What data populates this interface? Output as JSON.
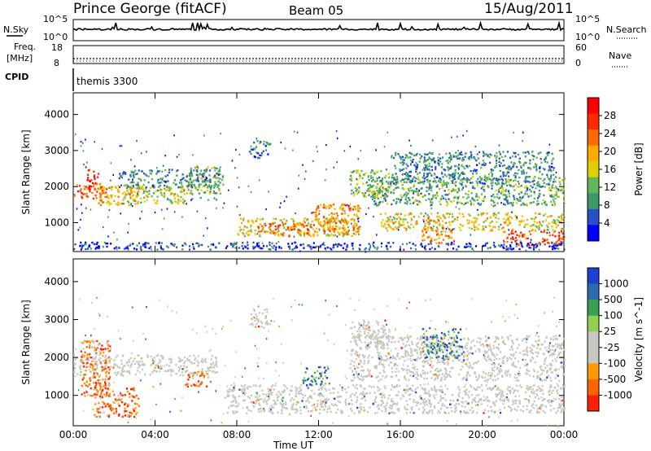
{
  "header": {
    "station": "Prince George (fitACF)",
    "beam": "Beam 05",
    "date": "15/Aug/2011"
  },
  "summary_panel": {
    "left_label_sky": "N.Sky",
    "left_tick_top": "10^5",
    "left_tick_bottom": "10^0",
    "right_label_search": "N.Search",
    "right_tick_top": "10^5",
    "right_tick_bottom": "10^0",
    "freq_label": "Freq.",
    "freq_unit": "[MHz]",
    "freq_tick_top": "18",
    "freq_tick_bottom": "8",
    "nave_label": "Nave",
    "nave_tick_top": "60",
    "nave_tick_bottom": "0",
    "cpid_label": "CPID",
    "cpid_value": "themis 3300"
  },
  "colors": {
    "power_scale": [
      "#0000ff",
      "#2a50c8",
      "#3c9a6a",
      "#5fb85a",
      "#e0d000",
      "#ffaa00",
      "#ff6a00",
      "#ff2a00",
      "#ff0000"
    ],
    "velocity_scale": [
      "#1f3fcf",
      "#2a6ab0",
      "#3aa050",
      "#8fd050",
      "#c8c8c0",
      "#c8c8c0",
      "#ff9a00",
      "#ff6400",
      "#ff2000"
    ],
    "ground_scatter": "#c8c8c0"
  },
  "chart_data": [
    {
      "type": "heatmap",
      "name": "power",
      "ylabel": "Slant Range [km]",
      "xlabel": "Time UT",
      "xlim_hours": [
        0,
        24
      ],
      "ylim_km": [
        200,
        4600
      ],
      "yticks": [
        "1000",
        "2000",
        "3000",
        "4000"
      ],
      "xticks": [
        "00:00",
        "04:00",
        "08:00",
        "12:00",
        "16:00",
        "20:00",
        "00:00"
      ],
      "colorbar_label": "Power [dB]",
      "colorbar_ticks": [
        "4",
        "8",
        "12",
        "16",
        "20",
        "24",
        "28"
      ],
      "colorbar_range": [
        0,
        30
      ],
      "regions": [
        {
          "t0": 0.0,
          "t1": 1.6,
          "r0": 1650,
          "r1": 2100,
          "level": 22
        },
        {
          "t0": 0.5,
          "t1": 1.2,
          "r0": 1950,
          "r1": 2500,
          "level": 26
        },
        {
          "t0": 1.2,
          "t1": 3.2,
          "r0": 1500,
          "r1": 2100,
          "level": 18
        },
        {
          "t0": 2.4,
          "t1": 5.6,
          "r0": 1550,
          "r1": 2050,
          "level": 14
        },
        {
          "t0": 5.6,
          "t1": 7.2,
          "r0": 1650,
          "r1": 2600,
          "level": 12
        },
        {
          "t0": 2.2,
          "t1": 7.3,
          "r0": 2000,
          "r1": 2500,
          "level": 8
        },
        {
          "t0": 8.0,
          "t1": 14.0,
          "r0": 650,
          "r1": 1150,
          "level": 16
        },
        {
          "t0": 9.0,
          "t1": 11.5,
          "r0": 650,
          "r1": 1000,
          "level": 22
        },
        {
          "t0": 11.6,
          "t1": 14.0,
          "r0": 700,
          "r1": 1550,
          "level": 20
        },
        {
          "t0": 13.5,
          "t1": 15.5,
          "r0": 1700,
          "r1": 2500,
          "level": 12
        },
        {
          "t0": 14.5,
          "t1": 24.0,
          "r0": 1500,
          "r1": 2300,
          "level": 10
        },
        {
          "t0": 15.0,
          "t1": 24.0,
          "r0": 800,
          "r1": 1300,
          "level": 16
        },
        {
          "t0": 17.0,
          "t1": 18.6,
          "r0": 450,
          "r1": 900,
          "level": 20
        },
        {
          "t0": 21.0,
          "t1": 24.0,
          "r0": 400,
          "r1": 800,
          "level": 24
        },
        {
          "t0": 15.5,
          "t1": 23.5,
          "r0": 2100,
          "r1": 3000,
          "level": 8
        },
        {
          "t0": 8.6,
          "t1": 9.6,
          "r0": 2800,
          "r1": 3300,
          "level": 6
        },
        {
          "t0": 0.0,
          "t1": 24.0,
          "r0": 280,
          "r1": 480,
          "level": 4
        }
      ]
    },
    {
      "type": "heatmap",
      "name": "velocity",
      "ylabel": "Slant Range [km]",
      "xlabel": "Time UT",
      "xlim_hours": [
        0,
        24
      ],
      "ylim_km": [
        200,
        4600
      ],
      "yticks": [
        "1000",
        "2000",
        "3000",
        "4000"
      ],
      "xticks": [
        "00:00",
        "04:00",
        "08:00",
        "12:00",
        "16:00",
        "20:00",
        "00:00"
      ],
      "colorbar_label": "Velocity [m s^-1]",
      "colorbar_ticks": [
        "1000",
        "500",
        "100",
        "25",
        "-25",
        "-100",
        "-500",
        "-1000"
      ],
      "regions": [
        {
          "t0": 0.0,
          "t1": 7.0,
          "r0": 1550,
          "r1": 2100,
          "kind": "ground"
        },
        {
          "t0": 0.3,
          "t1": 1.8,
          "r0": 1000,
          "r1": 2500,
          "kind": "neg"
        },
        {
          "t0": 1.0,
          "t1": 3.2,
          "r0": 450,
          "r1": 1300,
          "kind": "neg"
        },
        {
          "t0": 5.4,
          "t1": 6.7,
          "r0": 1250,
          "r1": 1650,
          "kind": "neg"
        },
        {
          "t0": 7.5,
          "t1": 24.0,
          "r0": 550,
          "r1": 1300,
          "kind": "ground"
        },
        {
          "t0": 13.5,
          "t1": 24.0,
          "r0": 1400,
          "r1": 2600,
          "kind": "ground"
        },
        {
          "t0": 11.2,
          "t1": 12.5,
          "r0": 1300,
          "r1": 1800,
          "kind": "pos"
        },
        {
          "t0": 17.0,
          "t1": 19.0,
          "r0": 2000,
          "r1": 2800,
          "kind": "pos"
        },
        {
          "t0": 8.6,
          "t1": 9.6,
          "r0": 2800,
          "r1": 3300,
          "kind": "ground"
        },
        {
          "t0": 13.6,
          "t1": 15.5,
          "r0": 2300,
          "r1": 3000,
          "kind": "ground"
        }
      ]
    }
  ]
}
